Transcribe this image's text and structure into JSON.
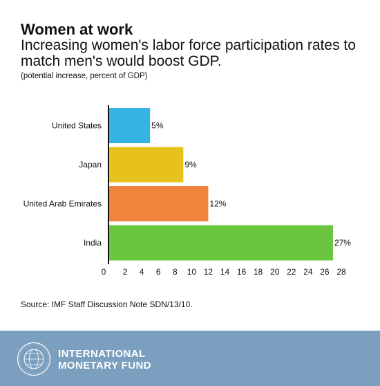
{
  "header": {
    "title": "Women at work",
    "subtitle": "Increasing women's labor force participation rates to match men's would boost GDP.",
    "note": "(potential increase, percent of GDP)"
  },
  "source": "Source: IMF Staff Discussion Note SDN/13/10.",
  "footer": {
    "org_line1": "INTERNATIONAL",
    "org_line2": "MONETARY FUND",
    "seal_text": "INTERNATIONAL MONETARY FUND",
    "colors": {
      "background": "#7a9fbf",
      "text": "#ffffff"
    }
  },
  "chart_data": {
    "type": "bar",
    "orientation": "horizontal",
    "categories": [
      "United States",
      "Japan",
      "United Arab Emirates",
      "India"
    ],
    "values": [
      5,
      9,
      12,
      27
    ],
    "value_labels": [
      "5%",
      "9%",
      "12%",
      "27%"
    ],
    "colors": [
      "#35b3e3",
      "#e8c21c",
      "#ef843c",
      "#6bc63f"
    ],
    "xlim": [
      0,
      28
    ],
    "xticks": [
      0,
      2,
      4,
      6,
      8,
      10,
      12,
      14,
      16,
      18,
      20,
      22,
      24,
      26,
      28
    ],
    "xlabel": "",
    "ylabel": "",
    "grid": false
  }
}
